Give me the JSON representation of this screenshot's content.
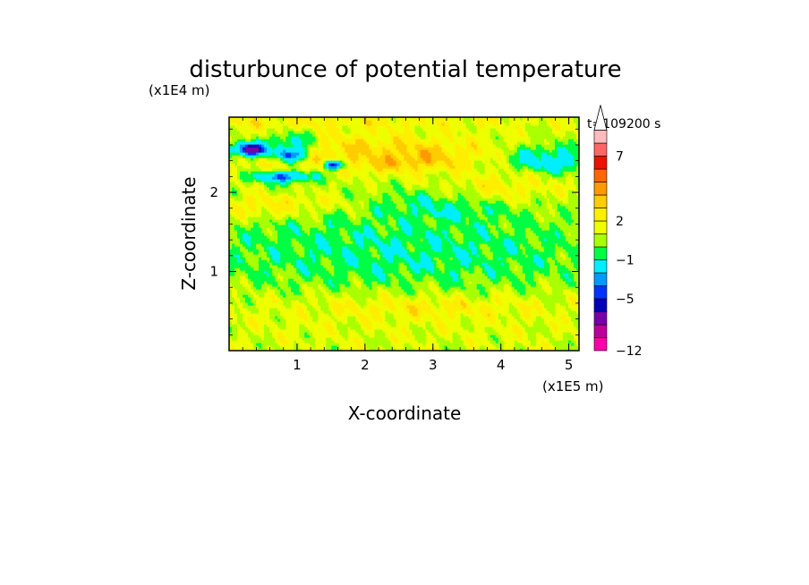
{
  "chart_data": {
    "type": "heatmap",
    "title": "disturbunce of potential temperature",
    "xlabel": "X-coordinate",
    "ylabel": "Z-coordinate",
    "x_unit": "(x1E5 m)",
    "y_unit": "(x1E4 m)",
    "time_label": "t=109200 s",
    "xlim": [
      0,
      5.15
    ],
    "ylim": [
      0,
      2.95
    ],
    "x_ticks": [
      {
        "v": 1,
        "label": "1"
      },
      {
        "v": 2,
        "label": "2"
      },
      {
        "v": 3,
        "label": "3"
      },
      {
        "v": 4,
        "label": "4"
      },
      {
        "v": 5,
        "label": "5"
      }
    ],
    "y_ticks": [
      {
        "v": 1,
        "label": "1"
      },
      {
        "v": 2,
        "label": "2"
      }
    ],
    "colorbar": {
      "levels": [
        -12,
        -10,
        -8,
        -6,
        -5,
        -4,
        -3,
        -1,
        0,
        1,
        2,
        3,
        4,
        5,
        6,
        7,
        8,
        9
      ],
      "colors": [
        "#ff00aa",
        "#bb0099",
        "#7700aa",
        "#0000bb",
        "#0033ff",
        "#0099ff",
        "#00eeff",
        "#00ff44",
        "#aaff00",
        "#eeff00",
        "#ffee00",
        "#ffcc00",
        "#ff9900",
        "#ff6600",
        "#ee1100",
        "#ff6666",
        "#ffbbbb",
        "#ffffff"
      ],
      "labeled_levels": [
        {
          "v": 7,
          "label": "7"
        },
        {
          "v": 2,
          "label": "2"
        },
        {
          "v": -1,
          "label": "−1"
        },
        {
          "v": -5,
          "label": "−5"
        },
        {
          "v": -12,
          "label": "−12"
        }
      ]
    },
    "background_value": 1.0,
    "field_features": [
      {
        "x": 2.5,
        "z": 2.45,
        "rx": 0.75,
        "rz": 0.14,
        "value": 6.0
      },
      {
        "x": 2.55,
        "z": 2.45,
        "rx": 0.3,
        "rz": 0.07,
        "value": 7.2
      },
      {
        "x": 1.8,
        "z": 2.5,
        "rx": 2.0,
        "rz": 0.25,
        "value": 3.0
      },
      {
        "x": 0.55,
        "z": 1.8,
        "rx": 0.55,
        "rz": 0.12,
        "value": 4.5
      },
      {
        "x": 1.0,
        "z": 1.85,
        "rx": 1.0,
        "rz": 0.12,
        "value": 3.0
      },
      {
        "x": 0.3,
        "z": 2.55,
        "rx": 0.3,
        "rz": 0.1,
        "value": -5.5
      },
      {
        "x": 0.9,
        "z": 2.5,
        "rx": 0.25,
        "rz": 0.1,
        "value": -5.0
      },
      {
        "x": 1.55,
        "z": 2.35,
        "rx": 0.15,
        "rz": 0.06,
        "value": -5.5
      },
      {
        "x": 0.8,
        "z": 2.2,
        "rx": 0.45,
        "rz": 0.07,
        "value": -4.5
      },
      {
        "x": 0.35,
        "z": 2.55,
        "rx": 0.1,
        "rz": 0.05,
        "value": -9.0
      },
      {
        "x": 0.9,
        "z": 2.65,
        "rx": 0.35,
        "rz": 0.15,
        "value": -1.5
      },
      {
        "x": 4.75,
        "z": 2.4,
        "rx": 0.45,
        "rz": 0.1,
        "value": -5.0
      },
      {
        "x": 4.7,
        "z": 2.42,
        "rx": 0.55,
        "rz": 0.2,
        "value": -1.5
      },
      {
        "x": 3.25,
        "z": 1.75,
        "rx": 0.35,
        "rz": 0.05,
        "value": -4.5
      },
      {
        "x": 3.2,
        "z": 1.85,
        "rx": 0.9,
        "rz": 0.18,
        "value": -1.5
      },
      {
        "x": 4.0,
        "z": 2.05,
        "rx": 0.9,
        "rz": 0.2,
        "value": 2.5
      },
      {
        "x": 2.5,
        "z": 1.25,
        "rx": 3.5,
        "rz": 0.6,
        "value": -0.9
      },
      {
        "x": 2.5,
        "z": 0.4,
        "rx": 4.0,
        "rz": 0.35,
        "value": 1.4
      },
      {
        "x": 3.0,
        "z": 0.55,
        "rx": 1.5,
        "rz": 0.12,
        "value": 2.3
      },
      {
        "x": 1.0,
        "z": 2.9,
        "rx": 3.5,
        "rz": 0.1,
        "value": 2.2
      }
    ]
  }
}
